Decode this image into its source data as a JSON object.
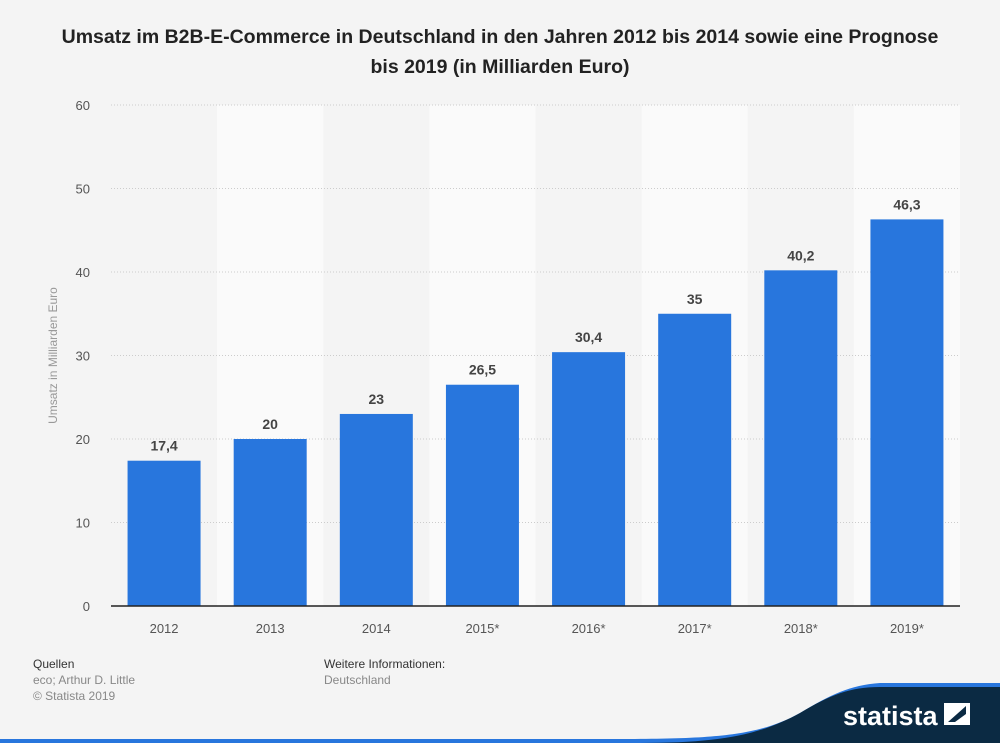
{
  "chart_data": {
    "type": "bar",
    "title": "Umsatz im B2B-E-Commerce in Deutschland in den Jahren 2012 bis 2014 sowie eine Prognose bis 2019 (in Milliarden Euro)",
    "categories": [
      "2012",
      "2013",
      "2014",
      "2015*",
      "2016*",
      "2017*",
      "2018*",
      "2019*"
    ],
    "values": [
      17.4,
      20,
      23,
      26.5,
      30.4,
      35,
      40.2,
      46.3
    ],
    "value_labels": [
      "17,4",
      "20",
      "23",
      "26,5",
      "30,4",
      "35",
      "40,2",
      "46,3"
    ],
    "xlabel": "",
    "ylabel": "Umsatz in Milliarden Euro",
    "ylim": [
      0,
      60
    ],
    "yticks": [
      0,
      10,
      20,
      30,
      40,
      50,
      60
    ],
    "grid": true,
    "bar_color": "#2876dd"
  },
  "footer": {
    "sources_heading": "Quellen",
    "sources": "eco; Arthur D. Little",
    "copyright": "© Statista 2019",
    "info_heading": "Weitere Informationen:",
    "info": "Deutschland"
  },
  "logo": {
    "text": "statista"
  }
}
